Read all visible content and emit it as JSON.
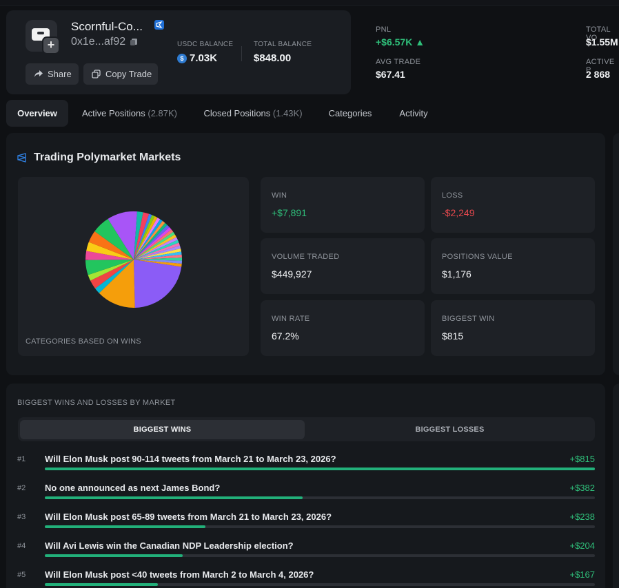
{
  "profile": {
    "username": "Scornful-Co...",
    "address": "0x1e...af92",
    "usdc_label": "USDC BALANCE",
    "usdc_value": "7.03K",
    "total_label": "TOTAL BALANCE",
    "total_value": "$848.00",
    "share_label": "Share",
    "copy_trade_label": "Copy Trade"
  },
  "stats": {
    "pnl_label": "PNL",
    "pnl_value": "+$6.57K ▲",
    "avg_trade_label": "AVG TRADE",
    "avg_trade_value": "$67.41",
    "total_vol_label": "TOTAL VO",
    "total_vol_value": "$1.55M",
    "active_label": "ACTIVE P",
    "active_value": "2 868"
  },
  "tabs": [
    {
      "label": "Overview",
      "count": ""
    },
    {
      "label": "Active Positions",
      "count": "(2.87K)"
    },
    {
      "label": "Closed Positions",
      "count": "(1.43K)"
    },
    {
      "label": "Categories",
      "count": ""
    },
    {
      "label": "Activity",
      "count": ""
    }
  ],
  "trading": {
    "title": "Trading Polymarket Markets",
    "pie_caption": "CATEGORIES BASED ON WINS",
    "metrics": [
      {
        "label": "WIN",
        "value": "+$7,891"
      },
      {
        "label": "LOSS",
        "value": "-$2,249"
      },
      {
        "label": "VOLUME TRADED",
        "value": "$449,927"
      },
      {
        "label": "POSITIONS VALUE",
        "value": "$1,176"
      },
      {
        "label": "WIN RATE",
        "value": "67.2%"
      },
      {
        "label": "BIGGEST WIN",
        "value": "$815"
      }
    ]
  },
  "chart_data": {
    "type": "pie",
    "title": "",
    "caption": "CATEGORIES BASED ON WINS",
    "slices": [
      {
        "value": 22,
        "color": "#8b5cf6"
      },
      {
        "value": 13,
        "color": "#f59e0b"
      },
      {
        "value": 2,
        "color": "#06b6d4"
      },
      {
        "value": 3,
        "color": "#ef4444"
      },
      {
        "value": 2,
        "color": "#a3e635"
      },
      {
        "value": 5,
        "color": "#22c55e"
      },
      {
        "value": 3,
        "color": "#ec4899"
      },
      {
        "value": 3,
        "color": "#facc15"
      },
      {
        "value": 4,
        "color": "#f97316"
      },
      {
        "value": 6,
        "color": "#22c55e"
      },
      {
        "value": 10,
        "color": "#a855f7"
      },
      {
        "value": 2,
        "color": "#14b8a6"
      },
      {
        "value": 2,
        "color": "#f43f5e"
      },
      {
        "value": 1,
        "color": "#3b82f6"
      },
      {
        "value": 1,
        "color": "#84cc16"
      },
      {
        "value": 1,
        "color": "#eab308"
      },
      {
        "value": 1,
        "color": "#e879f9"
      },
      {
        "value": 1,
        "color": "#0ea5e9"
      },
      {
        "value": 1,
        "color": "#fb923c"
      },
      {
        "value": 1,
        "color": "#10b981"
      },
      {
        "value": 1,
        "color": "#6366f1"
      },
      {
        "value": 1,
        "color": "#d946ef"
      },
      {
        "value": 1,
        "color": "#f87171"
      },
      {
        "value": 1,
        "color": "#4ade80"
      },
      {
        "value": 1,
        "color": "#fbbf24"
      },
      {
        "value": 1,
        "color": "#c084fc"
      },
      {
        "value": 1,
        "color": "#2dd4bf"
      },
      {
        "value": 1,
        "color": "#f472b6"
      },
      {
        "value": 1,
        "color": "#a78bfa"
      },
      {
        "value": 1,
        "color": "#fde047"
      },
      {
        "value": 1,
        "color": "#38bdf8"
      },
      {
        "value": 1,
        "color": "#fb7185"
      },
      {
        "value": 1,
        "color": "#34d399"
      },
      {
        "value": 1,
        "color": "#818cf8"
      },
      {
        "value": 1,
        "color": "#f59e0b"
      }
    ]
  },
  "wins": {
    "title": "BIGGEST WINS AND LOSSES BY MARKET",
    "toggle_wins": "BIGGEST WINS",
    "toggle_losses": "BIGGEST LOSSES",
    "rows": [
      {
        "rank": "#1",
        "question": "Will Elon Musk post 90-114 tweets from March 21 to March 23, 2026?",
        "amount": "+$815",
        "value": 815
      },
      {
        "rank": "#2",
        "question": "No one announced as next James Bond?",
        "amount": "+$382",
        "value": 382
      },
      {
        "rank": "#3",
        "question": "Will Elon Musk post 65-89 tweets from March 21 to March 23, 2026?",
        "amount": "+$238",
        "value": 238
      },
      {
        "rank": "#4",
        "question": "Will Avi Lewis win the Canadian NDP Leadership election?",
        "amount": "+$204",
        "value": 204
      },
      {
        "rank": "#5",
        "question": "Will Elon Musk post <40 tweets from March 2 to March 4, 2026?",
        "amount": "+$167",
        "value": 167
      }
    ]
  },
  "colors": {
    "green": "#2fbf7a",
    "red": "#e5484d",
    "bar": "#22b07a"
  }
}
